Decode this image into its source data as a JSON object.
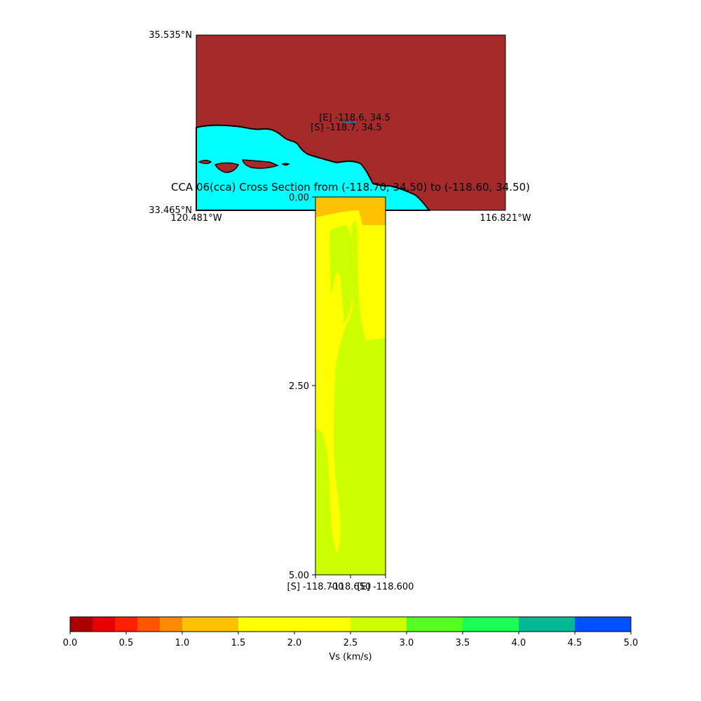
{
  "map": {
    "lat_top": "35.535°N",
    "lat_bottom": "33.465°N",
    "lon_left": "120.481°W",
    "lon_right": "116.821°W",
    "label_end": "[E] -118.6, 34.5",
    "label_start": "[S] -118.7, 34.5",
    "colors": {
      "land": "#a52a2a",
      "ocean": "#00ffff",
      "coast": "#000000"
    }
  },
  "chart_data": {
    "type": "heatmap",
    "title": "CCA 06(cca) Cross Section from (-118.70, 34.50) to (-118.60, 34.50)",
    "x_ticks": [
      "[S] -118.700",
      "-118.650",
      "[E] -118.600"
    ],
    "y_ticks": [
      "0.00",
      "2.50",
      "5.00"
    ],
    "y_range": [
      0.0,
      5.0
    ],
    "x_range": [
      -118.7,
      -118.6
    ],
    "colorbar": {
      "label": "Vs (km/s)",
      "tick_labels": [
        "0.0",
        "0.5",
        "1.0",
        "1.5",
        "2.0",
        "2.5",
        "3.0",
        "3.5",
        "4.0",
        "4.5",
        "5.0"
      ],
      "bins": [
        {
          "from": 0.0,
          "to": 0.2,
          "color": "#aa0000"
        },
        {
          "from": 0.2,
          "to": 0.4,
          "color": "#e60000"
        },
        {
          "from": 0.4,
          "to": 0.6,
          "color": "#ff2000"
        },
        {
          "from": 0.6,
          "to": 0.8,
          "color": "#ff5500"
        },
        {
          "from": 0.8,
          "to": 1.0,
          "color": "#ff8c00"
        },
        {
          "from": 1.0,
          "to": 1.5,
          "color": "#ffc200"
        },
        {
          "from": 1.5,
          "to": 2.5,
          "color": "#ffff00"
        },
        {
          "from": 2.5,
          "to": 3.0,
          "color": "#ccff00"
        },
        {
          "from": 3.0,
          "to": 3.5,
          "color": "#55ff22"
        },
        {
          "from": 3.5,
          "to": 4.0,
          "color": "#1aff55"
        },
        {
          "from": 4.0,
          "to": 4.5,
          "color": "#00b894"
        },
        {
          "from": 4.5,
          "to": 5.0,
          "color": "#0050ff"
        }
      ]
    },
    "regions": [
      {
        "vs_range": "1.0-1.5",
        "color": "#ffc200"
      },
      {
        "vs_range": "1.5-2.5",
        "color": "#ffff00"
      },
      {
        "vs_range": "2.5-3.0",
        "color": "#ccff00"
      }
    ]
  }
}
